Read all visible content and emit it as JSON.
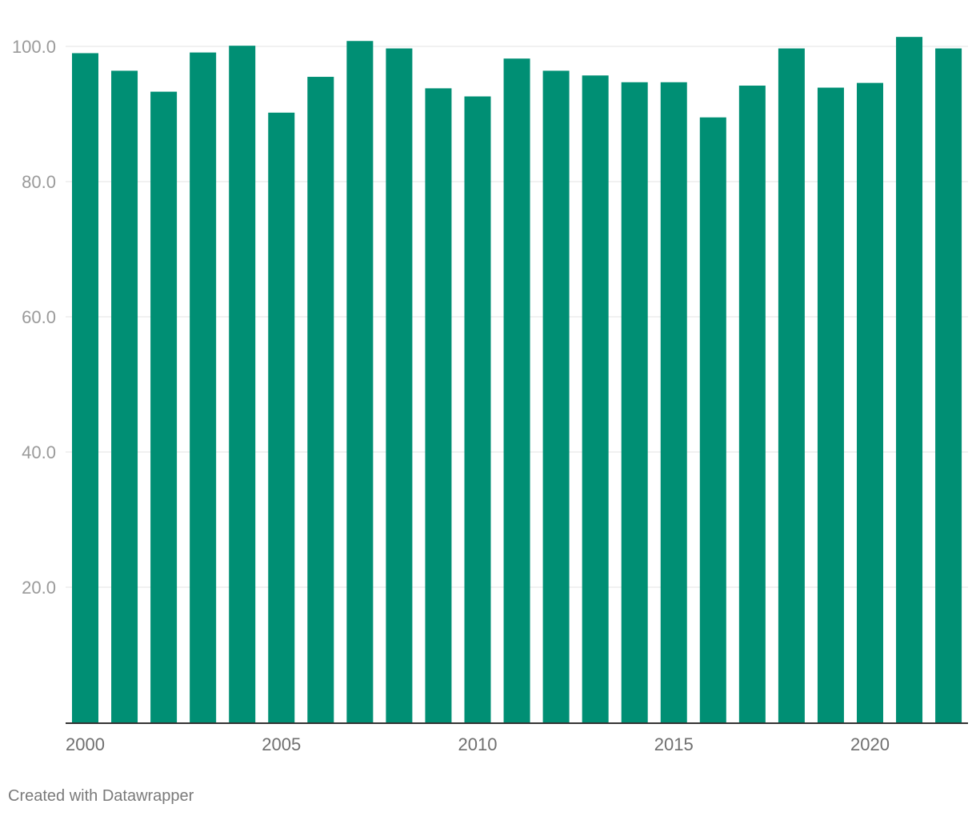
{
  "chart_data": {
    "type": "bar",
    "categories": [
      "2000",
      "2001",
      "2002",
      "2003",
      "2004",
      "2005",
      "2006",
      "2007",
      "2008",
      "2009",
      "2010",
      "2011",
      "2012",
      "2013",
      "2014",
      "2015",
      "2016",
      "2017",
      "2018",
      "2019",
      "2020",
      "2021",
      "2022"
    ],
    "values": [
      99.0,
      96.4,
      93.3,
      99.1,
      100.1,
      90.2,
      95.5,
      100.8,
      99.7,
      93.8,
      92.6,
      98.2,
      96.4,
      95.7,
      94.7,
      94.7,
      89.5,
      94.2,
      99.7,
      93.9,
      94.6,
      101.4,
      99.7
    ],
    "x_tick_labels": [
      "2000",
      "2005",
      "2010",
      "2015",
      "2020"
    ],
    "y_ticks": [
      20,
      40,
      60,
      80,
      100
    ],
    "y_tick_labels": [
      "20.0",
      "40.0",
      "60.0",
      "80.0",
      "100.0"
    ],
    "ylim": [
      0,
      100
    ],
    "grid": true,
    "bar_color": "#008f74",
    "title": "",
    "xlabel": "",
    "ylabel": ""
  },
  "footer": {
    "credit": "Created with Datawrapper"
  }
}
